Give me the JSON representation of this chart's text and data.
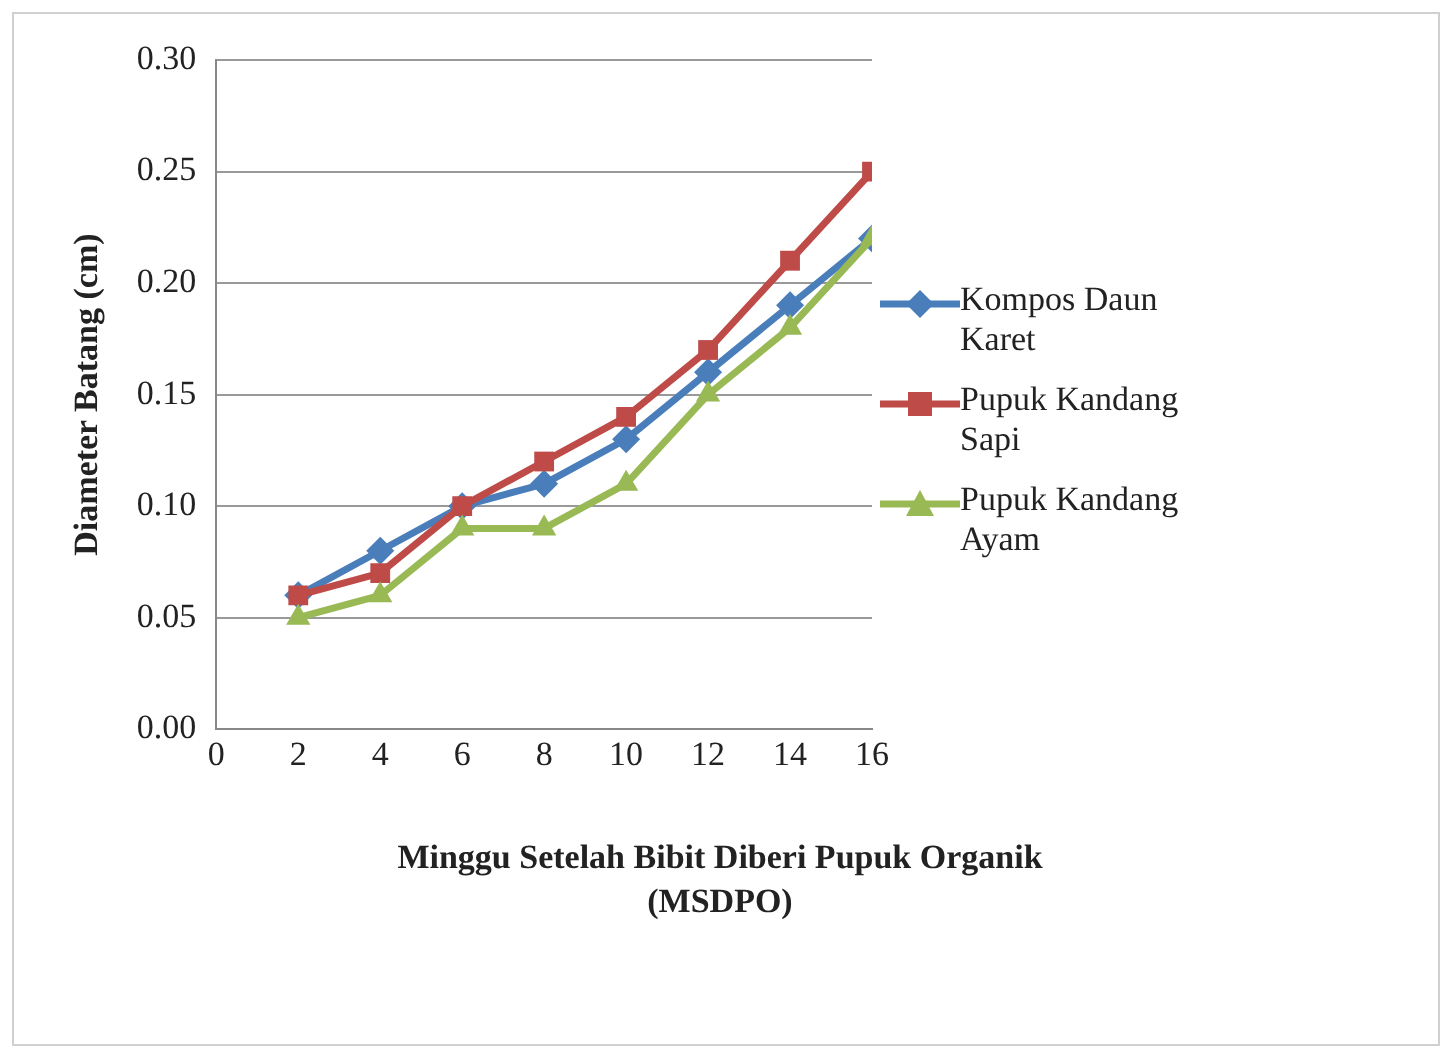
{
  "chart_data": {
    "type": "line",
    "xlabel": "Minggu Setelah Bibit Diberi Pupuk Organik (MSDPO)",
    "ylabel": "Diameter Batang (cm)",
    "x": [
      2,
      4,
      6,
      8,
      10,
      12,
      14,
      16
    ],
    "series": [
      {
        "name": "Kompos Daun Karet",
        "color": "#4a7ebb",
        "marker": "diamond",
        "values": [
          0.06,
          0.08,
          0.1,
          0.11,
          0.13,
          0.16,
          0.19,
          0.22
        ]
      },
      {
        "name": "Pupuk Kandang Sapi",
        "color": "#be4b48",
        "marker": "square",
        "values": [
          0.06,
          0.07,
          0.1,
          0.12,
          0.14,
          0.17,
          0.21,
          0.25
        ]
      },
      {
        "name": "Pupuk Kandang Ayam",
        "color": "#98b954",
        "marker": "triangle",
        "values": [
          0.05,
          0.06,
          0.09,
          0.09,
          0.11,
          0.15,
          0.18,
          0.22
        ]
      }
    ],
    "xlim": [
      0,
      16
    ],
    "xticks": [
      0,
      2,
      4,
      6,
      8,
      10,
      12,
      14,
      16
    ],
    "ylim": [
      0,
      0.3
    ],
    "yticks": [
      {
        "value": 0,
        "label": "0.00"
      },
      {
        "value": 0.05,
        "label": "0.05"
      },
      {
        "value": 0.1,
        "label": "0.10"
      },
      {
        "value": 0.15,
        "label": "0.15"
      },
      {
        "value": 0.2,
        "label": "0.20"
      },
      {
        "value": 0.25,
        "label": "0.25"
      },
      {
        "value": 0.3,
        "label": "0.30"
      }
    ],
    "grid": "y",
    "legend": "right",
    "line_style": "solid"
  }
}
